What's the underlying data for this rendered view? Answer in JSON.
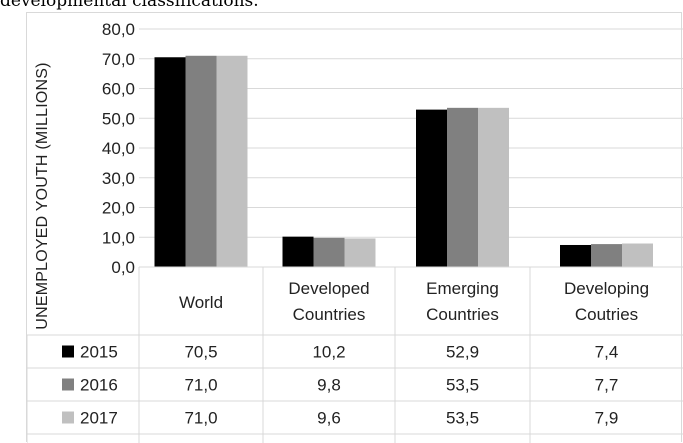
{
  "caption": "developmental classifications.",
  "colors": {
    "2015": "#000000",
    "2016": "#808080",
    "2017": "#c0c0c0"
  },
  "chart_data": {
    "type": "bar",
    "title": "",
    "xlabel": "",
    "ylabel": "UNEMPLOYED YOUTH (MILLIONS)",
    "ylim": [
      0,
      80
    ],
    "yticks": [
      "0,0",
      "10,0",
      "20,0",
      "30,0",
      "40,0",
      "50,0",
      "60,0",
      "70,0",
      "80,0"
    ],
    "grid": true,
    "legend": "data-table",
    "categories": [
      [
        "World"
      ],
      [
        "Developed",
        "Countries"
      ],
      [
        "Emerging",
        "Countries"
      ],
      [
        "Developing",
        "Coutries"
      ]
    ],
    "series": [
      {
        "name": "2015",
        "values": [
          70.5,
          10.2,
          52.9,
          7.4
        ],
        "labels": [
          "70,5",
          "10,2",
          "52,9",
          "7,4"
        ]
      },
      {
        "name": "2016",
        "values": [
          71.0,
          9.8,
          53.5,
          7.7
        ],
        "labels": [
          "71,0",
          "9,8",
          "53,5",
          "7,7"
        ]
      },
      {
        "name": "2017",
        "values": [
          71.0,
          9.6,
          53.5,
          7.9
        ],
        "labels": [
          "71,0",
          "9,6",
          "53,5",
          "7,9"
        ]
      }
    ]
  }
}
